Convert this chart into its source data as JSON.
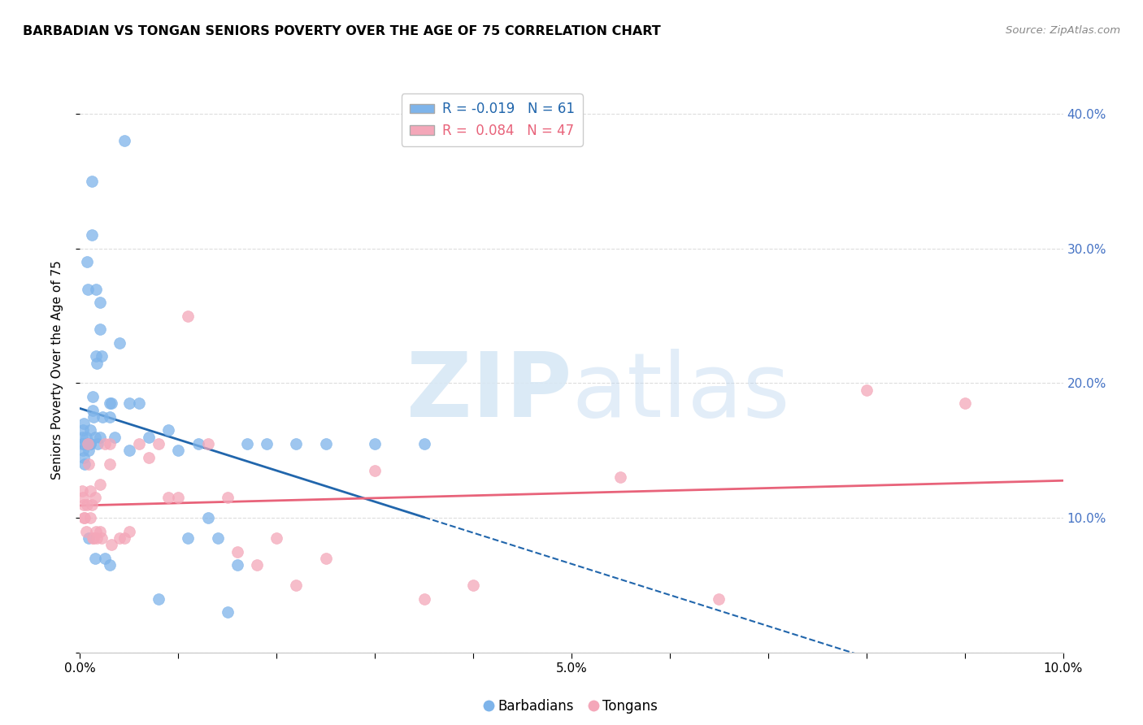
{
  "title": "BARBADIAN VS TONGAN SENIORS POVERTY OVER THE AGE OF 75 CORRELATION CHART",
  "source": "Source: ZipAtlas.com",
  "ylabel": "Seniors Poverty Over the Age of 75",
  "xlim": [
    0.0,
    0.1
  ],
  "ylim": [
    0.0,
    0.42
  ],
  "ytick_values": [
    0.0,
    0.1,
    0.2,
    0.3,
    0.4
  ],
  "xtick_values": [
    0.0,
    0.01,
    0.02,
    0.03,
    0.04,
    0.05,
    0.06,
    0.07,
    0.08,
    0.09,
    0.1
  ],
  "xtick_show": [
    0.0,
    0.05,
    0.1
  ],
  "barbadian_color": "#7EB4EA",
  "tongan_color": "#F4A7B9",
  "barbadian_line_color": "#2166AC",
  "tongan_line_color": "#E8637A",
  "legend_blue_R": -0.019,
  "legend_blue_N": 61,
  "legend_pink_R": 0.084,
  "legend_pink_N": 47,
  "background_color": "#FFFFFF",
  "grid_color": "#DDDDDD",
  "barbadian_x": [
    0.0002,
    0.0002,
    0.0003,
    0.0003,
    0.0004,
    0.0004,
    0.0005,
    0.0005,
    0.0006,
    0.0007,
    0.0007,
    0.0008,
    0.0008,
    0.0009,
    0.0009,
    0.001,
    0.001,
    0.001,
    0.0012,
    0.0012,
    0.0013,
    0.0013,
    0.0014,
    0.0015,
    0.0015,
    0.0016,
    0.0016,
    0.0017,
    0.0018,
    0.002,
    0.002,
    0.002,
    0.0022,
    0.0023,
    0.0025,
    0.003,
    0.003,
    0.003,
    0.0032,
    0.0035,
    0.004,
    0.0045,
    0.005,
    0.005,
    0.006,
    0.007,
    0.008,
    0.009,
    0.01,
    0.011,
    0.012,
    0.013,
    0.014,
    0.015,
    0.016,
    0.017,
    0.019,
    0.022,
    0.025,
    0.03,
    0.035
  ],
  "barbadian_y": [
    0.155,
    0.16,
    0.165,
    0.15,
    0.17,
    0.145,
    0.155,
    0.14,
    0.16,
    0.155,
    0.29,
    0.27,
    0.155,
    0.15,
    0.085,
    0.155,
    0.155,
    0.165,
    0.35,
    0.31,
    0.19,
    0.18,
    0.175,
    0.16,
    0.07,
    0.27,
    0.22,
    0.215,
    0.155,
    0.26,
    0.24,
    0.16,
    0.22,
    0.175,
    0.07,
    0.185,
    0.065,
    0.175,
    0.185,
    0.16,
    0.23,
    0.38,
    0.185,
    0.15,
    0.185,
    0.16,
    0.04,
    0.165,
    0.15,
    0.085,
    0.155,
    0.1,
    0.085,
    0.03,
    0.065,
    0.155,
    0.155,
    0.155,
    0.155,
    0.155,
    0.155
  ],
  "tongan_x": [
    0.0002,
    0.0003,
    0.0004,
    0.0004,
    0.0005,
    0.0006,
    0.0007,
    0.0008,
    0.0009,
    0.001,
    0.001,
    0.0012,
    0.0013,
    0.0014,
    0.0015,
    0.0016,
    0.0017,
    0.002,
    0.002,
    0.0022,
    0.0025,
    0.003,
    0.003,
    0.0032,
    0.004,
    0.0045,
    0.005,
    0.006,
    0.007,
    0.008,
    0.009,
    0.01,
    0.011,
    0.013,
    0.015,
    0.016,
    0.018,
    0.02,
    0.022,
    0.025,
    0.03,
    0.035,
    0.04,
    0.055,
    0.065,
    0.08,
    0.09
  ],
  "tongan_y": [
    0.12,
    0.115,
    0.11,
    0.1,
    0.1,
    0.09,
    0.11,
    0.155,
    0.14,
    0.12,
    0.1,
    0.11,
    0.085,
    0.085,
    0.115,
    0.09,
    0.085,
    0.125,
    0.09,
    0.085,
    0.155,
    0.155,
    0.14,
    0.08,
    0.085,
    0.085,
    0.09,
    0.155,
    0.145,
    0.155,
    0.115,
    0.115,
    0.25,
    0.155,
    0.115,
    0.075,
    0.065,
    0.085,
    0.05,
    0.07,
    0.135,
    0.04,
    0.05,
    0.13,
    0.04,
    0.195,
    0.185
  ]
}
